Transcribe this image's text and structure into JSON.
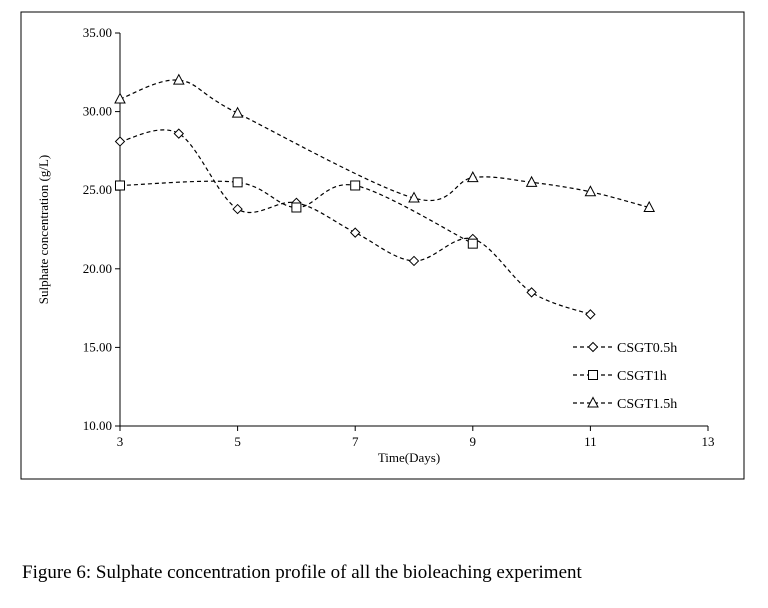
{
  "chart_data": {
    "type": "line",
    "title": "",
    "xlabel": "Time(Days)",
    "ylabel": "Sulphate concentration (g/L)",
    "xlim": [
      3,
      13
    ],
    "ylim": [
      10,
      35
    ],
    "x_ticks": [
      "3",
      "5",
      "7",
      "9",
      "11",
      "13"
    ],
    "y_ticks": [
      "10.00",
      "15.00",
      "20.00",
      "25.00",
      "30.00",
      "35.00"
    ],
    "grid": false,
    "legend_position": "bottom-right",
    "series": [
      {
        "name": "CSGT0.5h",
        "marker": "diamond",
        "x": [
          3,
          4,
          5,
          6,
          7,
          8,
          9,
          10,
          11
        ],
        "y": [
          28.1,
          28.6,
          23.8,
          24.2,
          22.3,
          20.5,
          21.9,
          18.5,
          17.1
        ]
      },
      {
        "name": "CSGT1h",
        "marker": "square",
        "x": [
          3,
          5,
          6,
          7,
          9
        ],
        "y": [
          25.3,
          25.5,
          23.9,
          25.3,
          21.6
        ]
      },
      {
        "name": "CSGT1.5h",
        "marker": "triangle",
        "x": [
          3,
          4,
          5,
          8,
          9,
          10,
          11,
          12
        ],
        "y": [
          30.8,
          32.0,
          29.9,
          24.5,
          25.8,
          25.5,
          24.9,
          23.9
        ]
      }
    ]
  },
  "caption": "Figure 6: Sulphate concentration profile of all the bioleaching  experiment"
}
